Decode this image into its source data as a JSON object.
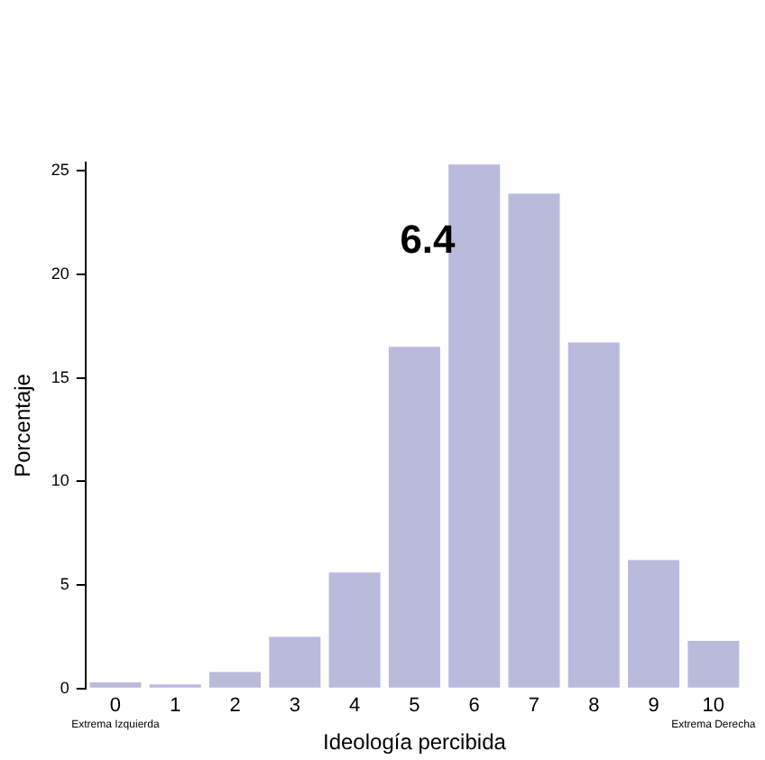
{
  "chart_data": {
    "type": "bar",
    "xlabel": "Ideología percibida",
    "ylabel": "Porcentaje",
    "categories": [
      "0",
      "1",
      "2",
      "3",
      "4",
      "5",
      "6",
      "7",
      "8",
      "9",
      "10"
    ],
    "values": [
      0.3,
      0.2,
      0.8,
      2.5,
      5.6,
      16.5,
      25.3,
      23.9,
      16.7,
      6.2,
      2.3
    ],
    "color": "#babadd",
    "ylim": [
      0,
      25.4
    ],
    "yticks": [
      0,
      5,
      10,
      15,
      20,
      25
    ],
    "grid": false,
    "legend": false,
    "annotations": [
      "6.4",
      "Extrema Izquierda",
      "Extrema Derecha"
    ]
  }
}
